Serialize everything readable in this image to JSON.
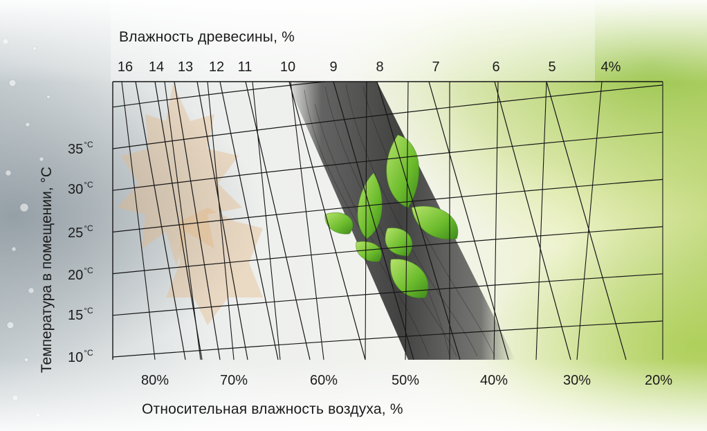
{
  "chart_data": {
    "type": "nomogram",
    "title": "",
    "x_top_label": "Влажность древесины, %",
    "x_top_ticks": [
      "16",
      "14",
      "13",
      "12",
      "11",
      "10",
      "9",
      "8",
      "7",
      "6",
      "5",
      "4%"
    ],
    "x_bottom_label": "Относительная влажность воздуха, %",
    "x_bottom_ticks": [
      "80%",
      "70%",
      "60%",
      "50%",
      "40%",
      "30%",
      "20%"
    ],
    "y_label": "Температура в помещении, °C",
    "y_ticks": [
      {
        "value": "35",
        "unit": "°C"
      },
      {
        "value": "30",
        "unit": "°C"
      },
      {
        "value": "25",
        "unit": "°C"
      },
      {
        "value": "20",
        "unit": "°C"
      },
      {
        "value": "15",
        "unit": "°C"
      },
      {
        "value": "10",
        "unit": "°C"
      }
    ],
    "y_range": [
      10,
      40
    ],
    "humidity_range_bottom": [
      85,
      20
    ],
    "wood_moisture_lines": [
      16,
      14,
      13,
      12,
      11,
      10,
      9,
      8,
      7,
      6,
      5,
      4
    ],
    "temperature_lines": [
      10,
      15,
      20,
      25,
      30,
      35,
      40
    ],
    "grid": true
  }
}
